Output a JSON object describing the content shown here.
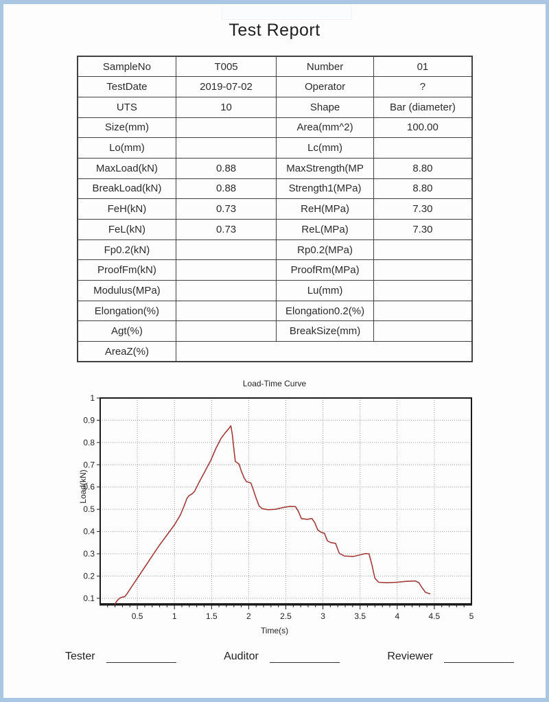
{
  "page": {
    "title": "Test Report"
  },
  "table": {
    "rows": [
      {
        "c0": "SampleNo",
        "c1": "T005",
        "c2": "Number",
        "c3": "01"
      },
      {
        "c0": "TestDate",
        "c1": "2019-07-02",
        "c2": "Operator",
        "c3": "?"
      },
      {
        "c0": "UTS",
        "c1": "10",
        "c2": "Shape",
        "c3": "Bar (diameter)"
      },
      {
        "c0": "Size(mm)",
        "c1": "",
        "c2": "Area(mm^2)",
        "c3": "100.00"
      },
      {
        "c0": "Lo(mm)",
        "c1": "",
        "c2": "Lc(mm)",
        "c3": ""
      },
      {
        "c0": "MaxLoad(kN)",
        "c1": "0.88",
        "c2": "MaxStrength(MP",
        "c3": "8.80"
      },
      {
        "c0": "BreakLoad(kN)",
        "c1": "0.88",
        "c2": "Strength1(MPa)",
        "c3": "8.80"
      },
      {
        "c0": "FeH(kN)",
        "c1": "0.73",
        "c2": "ReH(MPa)",
        "c3": "7.30"
      },
      {
        "c0": "FeL(kN)",
        "c1": "0.73",
        "c2": "ReL(MPa)",
        "c3": "7.30"
      },
      {
        "c0": "Fp0.2(kN)",
        "c1": "",
        "c2": "Rp0.2(MPa)",
        "c3": ""
      },
      {
        "c0": "ProofFm(kN)",
        "c1": "",
        "c2": "ProofRm(MPa)",
        "c3": ""
      },
      {
        "c0": "Modulus(MPa)",
        "c1": "",
        "c2": "Lu(mm)",
        "c3": ""
      },
      {
        "c0": "Elongation(%)",
        "c1": "",
        "c2": "Elongation0.2(%)",
        "c3": ""
      },
      {
        "c0": "Agt(%)",
        "c1": "",
        "c2": "BreakSize(mm)",
        "c3": ""
      }
    ],
    "last_row": {
      "label": "AreaZ(%)",
      "value": ""
    }
  },
  "chart_data": {
    "type": "line",
    "title": "Load-Time Curve",
    "xlabel": "Time(s)",
    "ylabel": "Load(kN)",
    "xlim": [
      0,
      5
    ],
    "ylim": [
      0.075,
      1
    ],
    "x_ticks": [
      0.5,
      1,
      1.5,
      2,
      2.5,
      3,
      3.5,
      4,
      4.5,
      5
    ],
    "y_ticks": [
      0.1,
      0.2,
      0.3,
      0.4,
      0.5,
      0.6,
      0.7,
      0.8,
      0.9,
      1
    ],
    "grid": "dotted",
    "line_color": "#a23b38",
    "series": [
      {
        "name": "Load",
        "points": [
          [
            0.2,
            0.075
          ],
          [
            0.23,
            0.09
          ],
          [
            0.26,
            0.1
          ],
          [
            0.29,
            0.105
          ],
          [
            0.33,
            0.107
          ],
          [
            0.36,
            0.12
          ],
          [
            0.42,
            0.15
          ],
          [
            0.5,
            0.19
          ],
          [
            0.6,
            0.24
          ],
          [
            0.7,
            0.29
          ],
          [
            0.8,
            0.34
          ],
          [
            0.9,
            0.385
          ],
          [
            1.0,
            0.43
          ],
          [
            1.08,
            0.475
          ],
          [
            1.13,
            0.515
          ],
          [
            1.17,
            0.55
          ],
          [
            1.2,
            0.562
          ],
          [
            1.24,
            0.57
          ],
          [
            1.27,
            0.58
          ],
          [
            1.33,
            0.62
          ],
          [
            1.41,
            0.67
          ],
          [
            1.49,
            0.72
          ],
          [
            1.56,
            0.775
          ],
          [
            1.63,
            0.82
          ],
          [
            1.68,
            0.842
          ],
          [
            1.73,
            0.862
          ],
          [
            1.76,
            0.875
          ],
          [
            1.78,
            0.835
          ],
          [
            1.8,
            0.77
          ],
          [
            1.82,
            0.715
          ],
          [
            1.87,
            0.703
          ],
          [
            1.9,
            0.672
          ],
          [
            1.94,
            0.64
          ],
          [
            1.97,
            0.624
          ],
          [
            2.03,
            0.618
          ],
          [
            2.06,
            0.59
          ],
          [
            2.1,
            0.55
          ],
          [
            2.14,
            0.515
          ],
          [
            2.18,
            0.503
          ],
          [
            2.26,
            0.498
          ],
          [
            2.36,
            0.5
          ],
          [
            2.46,
            0.508
          ],
          [
            2.56,
            0.513
          ],
          [
            2.63,
            0.512
          ],
          [
            2.67,
            0.49
          ],
          [
            2.71,
            0.458
          ],
          [
            2.79,
            0.455
          ],
          [
            2.85,
            0.459
          ],
          [
            2.89,
            0.44
          ],
          [
            2.93,
            0.407
          ],
          [
            2.98,
            0.396
          ],
          [
            3.02,
            0.392
          ],
          [
            3.06,
            0.358
          ],
          [
            3.11,
            0.35
          ],
          [
            3.17,
            0.347
          ],
          [
            3.22,
            0.302
          ],
          [
            3.29,
            0.29
          ],
          [
            3.41,
            0.288
          ],
          [
            3.5,
            0.295
          ],
          [
            3.57,
            0.301
          ],
          [
            3.62,
            0.3
          ],
          [
            3.66,
            0.25
          ],
          [
            3.7,
            0.19
          ],
          [
            3.75,
            0.172
          ],
          [
            3.86,
            0.17
          ],
          [
            4.0,
            0.172
          ],
          [
            4.12,
            0.176
          ],
          [
            4.24,
            0.178
          ],
          [
            4.29,
            0.171
          ],
          [
            4.33,
            0.15
          ],
          [
            4.38,
            0.127
          ],
          [
            4.44,
            0.12
          ]
        ]
      }
    ]
  },
  "footer": {
    "tester_label": "Tester",
    "auditor_label": "Auditor",
    "reviewer_label": "Reviewer"
  },
  "colors": {
    "frame": "#a9c6e3",
    "page_bg": "#fdfdfe",
    "table_border": "#404040",
    "grid_line": "#9a9a9a",
    "axis_frame": "#1a1a1a",
    "curve": "#a23b38"
  }
}
